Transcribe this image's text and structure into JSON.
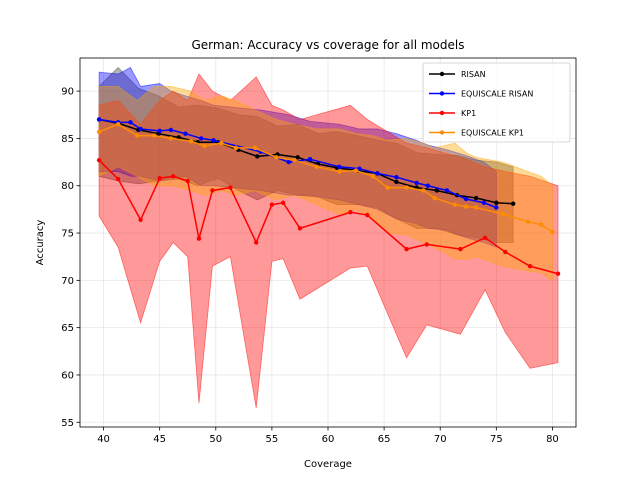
{
  "chart_data": {
    "type": "line",
    "title": "German: Accuracy vs coverage for all models",
    "xlabel": "Coverage",
    "ylabel": "Accuracy",
    "xlim": [
      37.9,
      82.1
    ],
    "ylim": [
      54.5,
      93.5
    ],
    "xticks": [
      40,
      45,
      50,
      55,
      60,
      65,
      70,
      75,
      80
    ],
    "yticks": [
      55,
      60,
      65,
      70,
      75,
      80,
      85,
      90
    ],
    "grid": true,
    "legend_position": "top-right",
    "series": [
      {
        "name": "RISAN",
        "color": "#000000",
        "band_color": "#404040",
        "x": [
          39.6,
          41.3,
          43.1,
          44.9,
          46.7,
          48.4,
          50.2,
          52.0,
          53.7,
          55.5,
          57.3,
          59.1,
          60.8,
          62.6,
          64.4,
          66.1,
          67.9,
          69.7,
          71.5,
          73.2,
          75.0,
          76.5
        ],
        "y": [
          87.0,
          86.6,
          85.9,
          85.5,
          85.1,
          84.6,
          84.6,
          83.8,
          83.1,
          83.3,
          83.0,
          82.3,
          81.9,
          81.6,
          81.3,
          80.4,
          79.8,
          79.5,
          79.0,
          78.7,
          78.2,
          78.1
        ],
        "upper": [
          90.5,
          92.5,
          90.3,
          89.5,
          88.3,
          88.5,
          88.2,
          87.5,
          87.3,
          86.3,
          86.5,
          85.5,
          85.7,
          85.3,
          84.8,
          84.5,
          83.5,
          83.3,
          83.2,
          82.7,
          82.5,
          82.0
        ],
        "lower": [
          81.0,
          80.5,
          80.2,
          80.5,
          80.7,
          80.0,
          80.8,
          79.5,
          78.5,
          79.5,
          79.0,
          78.8,
          78.0,
          78.0,
          77.7,
          76.5,
          75.5,
          75.5,
          74.8,
          74.5,
          74.0,
          74.0
        ]
      },
      {
        "name": "EQUISCALE RISAN",
        "color": "#0000ff",
        "band_color": "#0000ff",
        "x": [
          39.6,
          41.3,
          42.4,
          43.3,
          45.0,
          46.0,
          47.3,
          48.7,
          49.8,
          54.0,
          56.5,
          58.4,
          61.0,
          62.8,
          64.4,
          66.1,
          67.9,
          68.9,
          70.6,
          72.3,
          73.9,
          75.0
        ],
        "y": [
          87.0,
          86.7,
          86.7,
          86.0,
          85.8,
          85.9,
          85.5,
          85.0,
          84.8,
          83.6,
          82.5,
          82.8,
          82.0,
          81.8,
          81.3,
          80.9,
          80.3,
          80.0,
          79.5,
          78.6,
          78.2,
          77.7
        ],
        "upper": [
          92.0,
          91.8,
          92.5,
          90.5,
          90.8,
          90.0,
          89.5,
          89.0,
          88.5,
          88.0,
          87.5,
          86.8,
          86.5,
          86.0,
          86.0,
          85.5,
          84.8,
          84.3,
          83.8,
          83.2,
          82.5,
          81.5
        ],
        "lower": [
          81.5,
          81.5,
          81.0,
          81.0,
          80.5,
          80.8,
          81.0,
          80.0,
          80.0,
          79.5,
          79.0,
          79.0,
          78.5,
          78.0,
          77.5,
          76.5,
          76.0,
          75.5,
          75.3,
          74.5,
          74.0,
          73.5
        ]
      },
      {
        "name": "KP1",
        "color": "#ff0000",
        "band_color": "#ff0000",
        "x": [
          39.6,
          41.3,
          43.3,
          45.0,
          46.2,
          47.5,
          48.5,
          49.7,
          51.3,
          53.6,
          55.0,
          56.0,
          57.5,
          62.0,
          63.5,
          67.0,
          68.8,
          71.8,
          74.0,
          75.8,
          78.0,
          80.5
        ],
        "y": [
          82.7,
          80.7,
          76.4,
          80.8,
          81.0,
          80.5,
          74.4,
          79.5,
          79.8,
          74.0,
          78.0,
          78.2,
          75.5,
          77.2,
          76.9,
          73.3,
          73.8,
          73.3,
          74.5,
          73.0,
          71.5,
          70.7
        ],
        "upper": [
          88.5,
          89.0,
          86.5,
          89.0,
          90.0,
          89.0,
          91.8,
          90.0,
          89.0,
          91.5,
          88.5,
          88.0,
          87.0,
          88.5,
          87.0,
          84.5,
          84.0,
          83.0,
          82.0,
          81.5,
          81.0,
          80.0
        ],
        "lower": [
          76.8,
          73.5,
          65.5,
          72.0,
          74.0,
          72.5,
          57.0,
          71.5,
          72.5,
          56.5,
          72.0,
          72.3,
          68.0,
          71.3,
          71.5,
          61.8,
          65.3,
          64.3,
          69.0,
          64.5,
          60.7,
          61.3
        ]
      },
      {
        "name": "EQUISCALE KP1",
        "color": "#ff8c00",
        "band_color": "#ffa500",
        "x": [
          39.6,
          41.3,
          43.0,
          44.5,
          46.0,
          47.8,
          49.0,
          50.5,
          51.8,
          53.5,
          55.4,
          57.0,
          59.0,
          61.0,
          62.5,
          64.0,
          65.3,
          67.0,
          68.5,
          69.5,
          71.3,
          72.3,
          73.2,
          75.6,
          77.8,
          79.0,
          80.0
        ],
        "y": [
          85.7,
          86.5,
          85.3,
          85.3,
          85.0,
          84.7,
          84.2,
          84.5,
          84.0,
          84.0,
          83.0,
          82.7,
          82.0,
          81.5,
          81.6,
          81.0,
          79.8,
          79.8,
          79.5,
          78.7,
          78.0,
          77.8,
          77.7,
          77.0,
          76.2,
          75.9,
          75.1
        ],
        "upper": [
          90.5,
          90.5,
          89.0,
          90.5,
          90.5,
          90.0,
          89.0,
          89.5,
          89.0,
          88.0,
          87.0,
          86.5,
          86.0,
          86.0,
          85.5,
          85.3,
          84.8,
          85.0,
          84.5,
          84.0,
          84.5,
          83.5,
          83.0,
          82.5,
          81.5,
          81.0,
          80.0
        ],
        "lower": [
          81.0,
          82.0,
          81.0,
          80.0,
          80.0,
          79.5,
          79.0,
          79.5,
          79.0,
          79.5,
          78.5,
          79.0,
          78.0,
          77.0,
          77.5,
          76.5,
          75.0,
          74.8,
          74.0,
          73.5,
          72.3,
          72.2,
          72.5,
          71.5,
          71.0,
          70.8,
          70.0
        ]
      }
    ]
  }
}
